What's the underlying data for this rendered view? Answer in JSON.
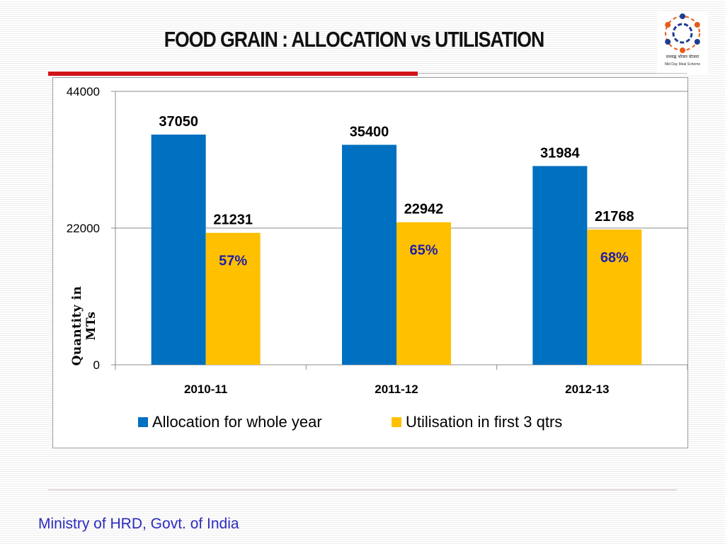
{
  "slide": {
    "title": "FOOD GRAIN : ALLOCATION vs UTILISATION",
    "footer": "Ministry of HRD, Govt. of India",
    "logo_text": "मध्याह्न भोजन योजना",
    "logo_caption": "Mid Day Meal Scheme",
    "logo_icon": "mid-day-meal-logo"
  },
  "chart_data": {
    "type": "bar",
    "title": "",
    "xlabel": "",
    "ylabel": "Quantity in  MTs",
    "ylim": [
      0,
      44000
    ],
    "yticks": [
      0,
      22000,
      44000
    ],
    "categories": [
      "2010-11",
      "2011-12",
      "2012-13"
    ],
    "series": [
      {
        "name": "Allocation for whole year",
        "color": "#0070c0",
        "values": [
          37050,
          35400,
          31984
        ]
      },
      {
        "name": "Utilisation in first 3 qtrs",
        "color": "#ffc000",
        "values": [
          21231,
          22942,
          21768
        ]
      }
    ],
    "annotations": [
      "57%",
      "65%",
      "68%"
    ],
    "annotation_color": "#1f1fa8",
    "grid": true,
    "legend": "bottom"
  }
}
